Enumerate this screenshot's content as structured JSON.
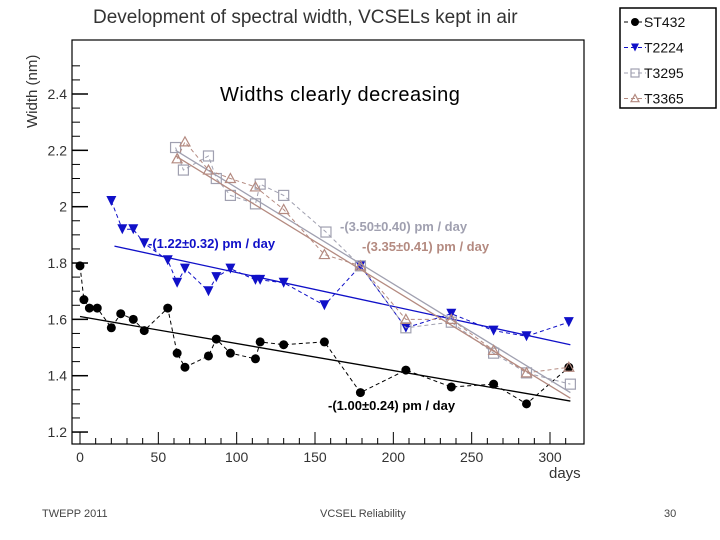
{
  "chart_data": {
    "type": "scatter",
    "title": "Development of spectral width, VCSELs kept in air",
    "annotation": "Widths clearly decreasing",
    "xlabel": "days",
    "ylabel": "Width (nm)",
    "xlim": [
      -8,
      318
    ],
    "ylim": [
      1.2,
      2.52
    ],
    "xticks": [
      0,
      50,
      100,
      150,
      200,
      250,
      300
    ],
    "yticks": [
      1.2,
      1.4,
      1.6,
      1.8,
      2,
      2.2,
      2.4
    ],
    "ytick_labels": [
      "1.2",
      "1.4",
      "1.6",
      "1.8",
      "2",
      "2.2",
      "2.4"
    ],
    "legend_position": "top-right",
    "series": [
      {
        "name": "ST432",
        "color": "#000000",
        "marker": "circle",
        "x": [
          0,
          2.5,
          6,
          11,
          20,
          26,
          34,
          41,
          56,
          62,
          67,
          82,
          87,
          96,
          112,
          115,
          130,
          156,
          179,
          208,
          237,
          264,
          285,
          312
        ],
        "y": [
          1.79,
          1.67,
          1.64,
          1.64,
          1.57,
          1.62,
          1.6,
          1.56,
          1.64,
          1.48,
          1.43,
          1.47,
          1.53,
          1.48,
          1.46,
          1.52,
          1.51,
          1.52,
          1.34,
          1.42,
          1.36,
          1.37,
          1.3,
          1.43
        ],
        "fit": {
          "x": [
            0,
            313
          ],
          "y": [
            1.61,
            1.31
          ],
          "label": "-(1.00±0.24) pm / day"
        }
      },
      {
        "name": "T2224",
        "color": "#1010c8",
        "marker": "triangle-down",
        "x": [
          20,
          27,
          34,
          41,
          56,
          62,
          67,
          82,
          87,
          96,
          112,
          115,
          130,
          156,
          179,
          208,
          237,
          264,
          285,
          312
        ],
        "y": [
          2.02,
          1.92,
          1.92,
          1.87,
          1.81,
          1.73,
          1.78,
          1.7,
          1.75,
          1.78,
          1.74,
          1.74,
          1.73,
          1.65,
          1.79,
          1.57,
          1.62,
          1.56,
          1.54,
          1.59
        ],
        "fit": {
          "x": [
            22,
            313
          ],
          "y": [
            1.86,
            1.51
          ],
          "label": "-(1.22±0.32) pm / day"
        }
      },
      {
        "name": "T3295",
        "color": "#a0a0b0",
        "marker": "square",
        "x": [
          61,
          66,
          82,
          87,
          96,
          112,
          115,
          130,
          157,
          179,
          208,
          237,
          264,
          285,
          313
        ],
        "y": [
          2.21,
          2.13,
          2.18,
          2.1,
          2.04,
          2.01,
          2.08,
          2.04,
          1.91,
          1.79,
          1.57,
          1.59,
          1.48,
          1.41,
          1.37
        ],
        "fit": {
          "x": [
            61,
            313
          ],
          "y": [
            2.2,
            1.34
          ],
          "label": "-(3.50±0.40) pm / day"
        }
      },
      {
        "name": "T3365",
        "color": "#b48a80",
        "marker": "triangle-up",
        "x": [
          62,
          67,
          82,
          96,
          112,
          130,
          156,
          179,
          208,
          237,
          264,
          285,
          312
        ],
        "y": [
          2.17,
          2.23,
          2.13,
          2.1,
          2.07,
          1.99,
          1.83,
          1.79,
          1.6,
          1.6,
          1.49,
          1.41,
          1.43
        ],
        "fit": {
          "x": [
            61,
            313
          ],
          "y": [
            2.18,
            1.32
          ],
          "label": "-(3.35±0.41) pm / day"
        }
      }
    ]
  },
  "footer": {
    "left": "TWEPP 2011",
    "center": "VCSEL Reliability",
    "page": "30"
  }
}
